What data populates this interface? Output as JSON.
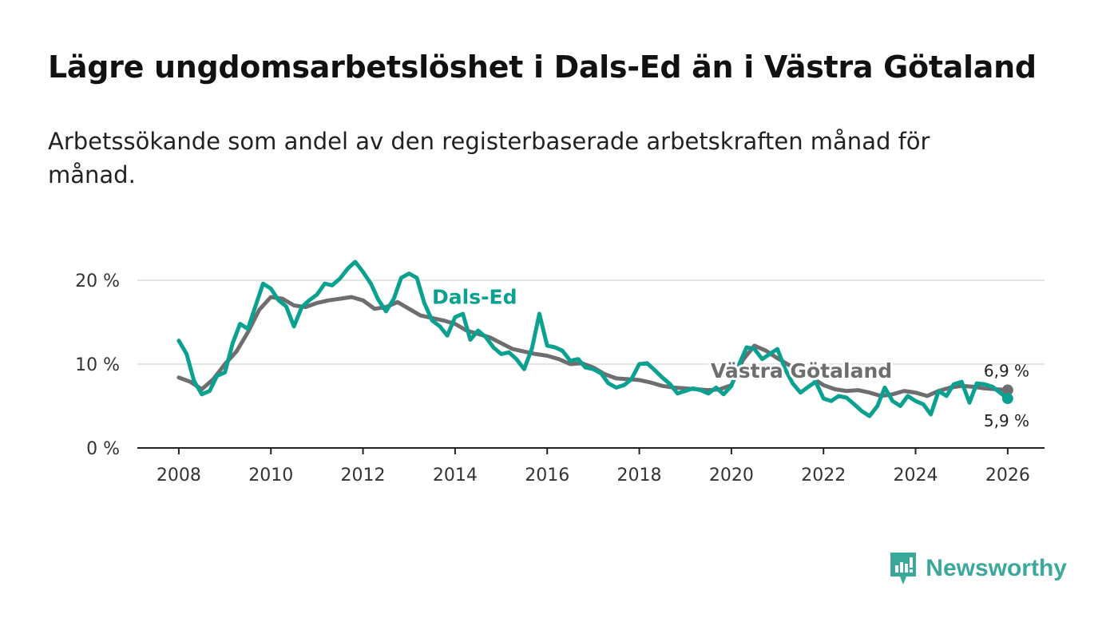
{
  "title": "Lägre ungdomsarbetslöshet i Dals-Ed än i Västra Götaland",
  "subtitle": "Arbetssökande som andel av den registerbaserade arbetskraften månad för månad.",
  "brand": {
    "name": "Newsworthy",
    "icon": "newsworthy-logo-icon",
    "color": "#3aa89a"
  },
  "chart_data": {
    "type": "line",
    "title": "Lägre ungdomsarbetslöshet i Dals-Ed än i Västra Götaland",
    "xlabel": "",
    "ylabel": "",
    "xlim": [
      2007.1,
      2026.8
    ],
    "ylim": [
      0,
      22
    ],
    "grid": true,
    "x_ticks": [
      2008,
      2010,
      2012,
      2014,
      2016,
      2018,
      2020,
      2022,
      2024,
      2026
    ],
    "y_ticks": [
      {
        "value": 0,
        "label": "0 %"
      },
      {
        "value": 10,
        "label": "10 %"
      },
      {
        "value": 20,
        "label": "20 %"
      }
    ],
    "series": [
      {
        "name": "Västra Götaland",
        "color": "#6e6d70",
        "end_label": "6,9 %",
        "end_marker": true,
        "points": [
          [
            2008.0,
            8.4
          ],
          [
            2008.25,
            7.9
          ],
          [
            2008.5,
            7.0
          ],
          [
            2008.75,
            8.2
          ],
          [
            2009.0,
            10.0
          ],
          [
            2009.25,
            11.5
          ],
          [
            2009.5,
            13.8
          ],
          [
            2009.75,
            16.5
          ],
          [
            2010.0,
            18.0
          ],
          [
            2010.25,
            17.8
          ],
          [
            2010.5,
            17.0
          ],
          [
            2010.75,
            16.8
          ],
          [
            2011.0,
            17.3
          ],
          [
            2011.25,
            17.6
          ],
          [
            2011.5,
            17.8
          ],
          [
            2011.75,
            18.0
          ],
          [
            2012.0,
            17.6
          ],
          [
            2012.25,
            16.6
          ],
          [
            2012.5,
            16.8
          ],
          [
            2012.75,
            17.4
          ],
          [
            2013.0,
            16.6
          ],
          [
            2013.25,
            15.8
          ],
          [
            2013.5,
            15.5
          ],
          [
            2013.75,
            15.2
          ],
          [
            2014.0,
            14.8
          ],
          [
            2014.25,
            14.0
          ],
          [
            2014.5,
            13.6
          ],
          [
            2014.75,
            13.2
          ],
          [
            2015.0,
            12.5
          ],
          [
            2015.25,
            11.8
          ],
          [
            2015.5,
            11.5
          ],
          [
            2015.75,
            11.2
          ],
          [
            2016.0,
            11.0
          ],
          [
            2016.25,
            10.6
          ],
          [
            2016.5,
            10.0
          ],
          [
            2016.75,
            10.1
          ],
          [
            2017.0,
            9.6
          ],
          [
            2017.25,
            8.8
          ],
          [
            2017.5,
            8.3
          ],
          [
            2017.75,
            8.2
          ],
          [
            2018.0,
            8.1
          ],
          [
            2018.25,
            7.8
          ],
          [
            2018.5,
            7.4
          ],
          [
            2018.75,
            7.2
          ],
          [
            2019.0,
            7.1
          ],
          [
            2019.25,
            7.0
          ],
          [
            2019.5,
            6.9
          ],
          [
            2019.75,
            7.0
          ],
          [
            2020.0,
            7.5
          ],
          [
            2020.25,
            10.5
          ],
          [
            2020.5,
            12.2
          ],
          [
            2020.75,
            11.6
          ],
          [
            2021.0,
            10.7
          ],
          [
            2021.25,
            9.9
          ],
          [
            2021.5,
            9.2
          ],
          [
            2021.75,
            8.4
          ],
          [
            2022.0,
            7.5
          ],
          [
            2022.25,
            7.0
          ],
          [
            2022.5,
            6.8
          ],
          [
            2022.75,
            6.9
          ],
          [
            2023.0,
            6.6
          ],
          [
            2023.25,
            6.2
          ],
          [
            2023.5,
            6.4
          ],
          [
            2023.75,
            6.8
          ],
          [
            2024.0,
            6.6
          ],
          [
            2024.25,
            6.2
          ],
          [
            2024.5,
            6.8
          ],
          [
            2024.75,
            7.2
          ],
          [
            2025.0,
            7.4
          ],
          [
            2025.25,
            7.3
          ],
          [
            2025.5,
            7.1
          ],
          [
            2025.75,
            7.0
          ],
          [
            2026.0,
            6.9
          ]
        ]
      },
      {
        "name": "Dals-Ed",
        "color": "#0aa191",
        "end_label": "5,9 %",
        "end_marker": true,
        "points": [
          [
            2008.0,
            12.8
          ],
          [
            2008.17,
            11.2
          ],
          [
            2008.33,
            8.0
          ],
          [
            2008.5,
            6.4
          ],
          [
            2008.67,
            6.8
          ],
          [
            2008.83,
            8.6
          ],
          [
            2009.0,
            9.0
          ],
          [
            2009.17,
            12.5
          ],
          [
            2009.33,
            14.8
          ],
          [
            2009.5,
            14.2
          ],
          [
            2009.67,
            17.0
          ],
          [
            2009.83,
            19.6
          ],
          [
            2010.0,
            19.0
          ],
          [
            2010.17,
            17.6
          ],
          [
            2010.33,
            16.9
          ],
          [
            2010.5,
            14.5
          ],
          [
            2010.67,
            16.8
          ],
          [
            2010.83,
            17.6
          ],
          [
            2011.0,
            18.3
          ],
          [
            2011.17,
            19.6
          ],
          [
            2011.33,
            19.4
          ],
          [
            2011.5,
            20.2
          ],
          [
            2011.67,
            21.4
          ],
          [
            2011.83,
            22.2
          ],
          [
            2012.0,
            21.0
          ],
          [
            2012.17,
            19.6
          ],
          [
            2012.33,
            17.7
          ],
          [
            2012.5,
            16.3
          ],
          [
            2012.67,
            17.8
          ],
          [
            2012.83,
            20.3
          ],
          [
            2013.0,
            20.8
          ],
          [
            2013.17,
            20.3
          ],
          [
            2013.33,
            17.3
          ],
          [
            2013.5,
            15.2
          ],
          [
            2013.67,
            14.5
          ],
          [
            2013.83,
            13.4
          ],
          [
            2014.0,
            15.6
          ],
          [
            2014.17,
            16.0
          ],
          [
            2014.33,
            12.9
          ],
          [
            2014.5,
            14.0
          ],
          [
            2014.67,
            13.2
          ],
          [
            2014.83,
            12.0
          ],
          [
            2015.0,
            11.2
          ],
          [
            2015.17,
            11.4
          ],
          [
            2015.33,
            10.6
          ],
          [
            2015.5,
            9.4
          ],
          [
            2015.67,
            11.9
          ],
          [
            2015.83,
            16.0
          ],
          [
            2016.0,
            12.2
          ],
          [
            2016.17,
            12.0
          ],
          [
            2016.33,
            11.6
          ],
          [
            2016.5,
            10.4
          ],
          [
            2016.67,
            10.6
          ],
          [
            2016.83,
            9.6
          ],
          [
            2017.0,
            9.4
          ],
          [
            2017.17,
            8.9
          ],
          [
            2017.33,
            7.7
          ],
          [
            2017.5,
            7.2
          ],
          [
            2017.67,
            7.5
          ],
          [
            2017.83,
            8.2
          ],
          [
            2018.0,
            10.0
          ],
          [
            2018.17,
            10.1
          ],
          [
            2018.33,
            9.3
          ],
          [
            2018.5,
            8.4
          ],
          [
            2018.67,
            7.6
          ],
          [
            2018.83,
            6.5
          ],
          [
            2019.0,
            6.8
          ],
          [
            2019.17,
            7.1
          ],
          [
            2019.33,
            6.9
          ],
          [
            2019.5,
            6.5
          ],
          [
            2019.67,
            7.2
          ],
          [
            2019.83,
            6.4
          ],
          [
            2020.0,
            7.4
          ],
          [
            2020.17,
            10.0
          ],
          [
            2020.33,
            12.0
          ],
          [
            2020.5,
            11.8
          ],
          [
            2020.67,
            10.6
          ],
          [
            2020.83,
            11.2
          ],
          [
            2021.0,
            11.8
          ],
          [
            2021.17,
            9.4
          ],
          [
            2021.33,
            7.7
          ],
          [
            2021.5,
            6.6
          ],
          [
            2021.67,
            7.3
          ],
          [
            2021.83,
            7.9
          ],
          [
            2022.0,
            5.9
          ],
          [
            2022.17,
            5.6
          ],
          [
            2022.33,
            6.2
          ],
          [
            2022.5,
            6.0
          ],
          [
            2022.67,
            5.2
          ],
          [
            2022.83,
            4.4
          ],
          [
            2023.0,
            3.8
          ],
          [
            2023.17,
            5.0
          ],
          [
            2023.33,
            7.2
          ],
          [
            2023.5,
            5.6
          ],
          [
            2023.67,
            5.0
          ],
          [
            2023.83,
            6.2
          ],
          [
            2024.0,
            5.6
          ],
          [
            2024.17,
            5.2
          ],
          [
            2024.33,
            4.0
          ],
          [
            2024.5,
            6.8
          ],
          [
            2024.67,
            6.2
          ],
          [
            2024.83,
            7.6
          ],
          [
            2025.0,
            7.9
          ],
          [
            2025.17,
            5.4
          ],
          [
            2025.33,
            7.7
          ],
          [
            2025.5,
            7.6
          ],
          [
            2025.67,
            7.3
          ],
          [
            2025.83,
            6.6
          ],
          [
            2026.0,
            5.9
          ]
        ]
      }
    ],
    "annotations": [
      {
        "text": "Dals-Ed",
        "series": "Dals-Ed",
        "x": 2013.5,
        "y": 17.2
      },
      {
        "text": "Västra Götaland",
        "series": "Västra Götaland",
        "x": 2019.55,
        "y": 8.4
      }
    ]
  }
}
